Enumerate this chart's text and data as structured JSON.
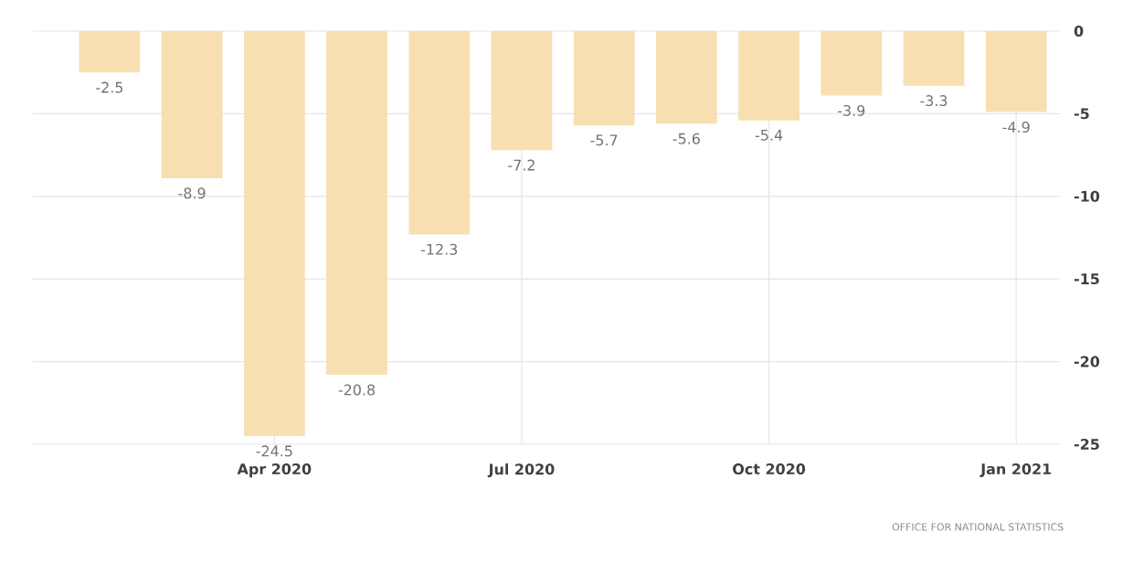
{
  "chart_data": {
    "type": "bar",
    "categories": [
      null,
      null,
      "Apr 2020",
      null,
      null,
      "Jul 2020",
      null,
      null,
      "Oct 2020",
      null,
      null,
      "Jan 2021"
    ],
    "values": [
      -2.5,
      -8.9,
      -24.5,
      -20.8,
      -12.3,
      -7.2,
      -5.7,
      -5.6,
      -5.4,
      -3.9,
      -3.3,
      -4.9
    ],
    "color": "#f7dfb2",
    "ylim": [
      -25,
      0
    ],
    "yticks": [
      0,
      -5,
      -10,
      -15,
      -20,
      -25
    ],
    "grid": true,
    "data_labels": true,
    "annotations": [
      "OFFICE FOR NATIONAL STATISTICS"
    ]
  }
}
